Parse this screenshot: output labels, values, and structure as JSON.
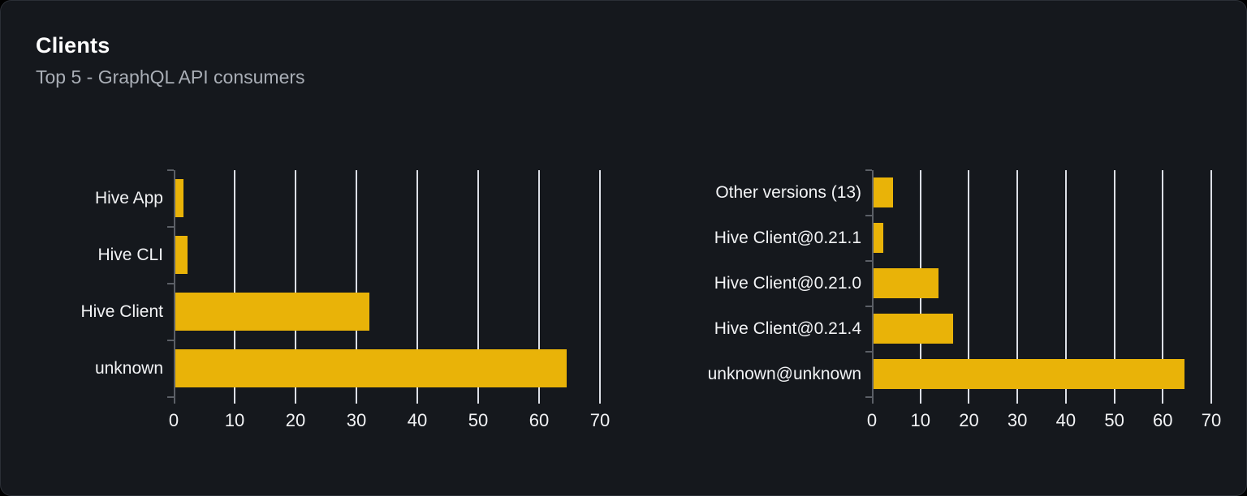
{
  "card": {
    "title": "Clients",
    "subtitle": "Top 5 - GraphQL API consumers"
  },
  "colors": {
    "background": "#000000",
    "card_bg": "#15181d",
    "card_border": "#2b2f36",
    "bar": "#e9b308",
    "gridline": "#dcdfe6",
    "axis": "#5b5f66",
    "title": "#ffffff",
    "subtitle": "#a9aeb6",
    "label": "#f2f3f5"
  },
  "chart_data": [
    {
      "type": "bar",
      "orientation": "horizontal",
      "name": "clients-by-name",
      "categories": [
        "Hive App",
        "Hive CLI",
        "Hive Client",
        "unknown"
      ],
      "values": [
        1.3,
        2,
        32,
        64.5
      ],
      "xlim": [
        0,
        70
      ],
      "xticks": [
        0,
        10,
        20,
        30,
        40,
        50,
        60,
        70
      ],
      "grid": true,
      "legend": false,
      "bar_color": "#e9b308"
    },
    {
      "type": "bar",
      "orientation": "horizontal",
      "name": "clients-by-version",
      "categories": [
        "Other versions (13)",
        "Hive Client@0.21.1",
        "Hive Client@0.21.0",
        "Hive Client@0.21.4",
        "unknown@unknown"
      ],
      "values": [
        4,
        2,
        13.5,
        16.5,
        64.5
      ],
      "xlim": [
        0,
        70
      ],
      "xticks": [
        0,
        10,
        20,
        30,
        40,
        50,
        60,
        70
      ],
      "grid": true,
      "legend": false,
      "bar_color": "#e9b308"
    }
  ]
}
